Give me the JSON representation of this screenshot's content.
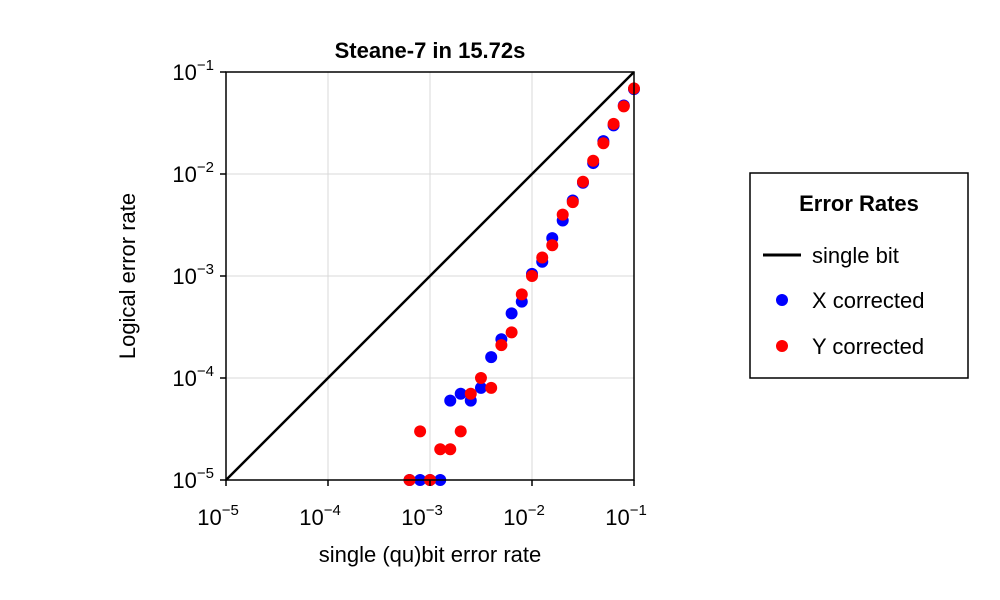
{
  "chart_data": {
    "type": "scatter",
    "title": "Steane-7 in 15.72s",
    "xlabel": "single (qu)bit error rate",
    "ylabel": "Logical error rate",
    "xscale": "log10",
    "yscale": "log10",
    "xlim": [
      1e-05,
      0.1
    ],
    "ylim": [
      1e-05,
      0.1
    ],
    "grid": true,
    "x_ticks": [
      {
        "base": "10",
        "exp": "−5",
        "value": 1e-05
      },
      {
        "base": "10",
        "exp": "−4",
        "value": 0.0001
      },
      {
        "base": "10",
        "exp": "−3",
        "value": 0.001
      },
      {
        "base": "10",
        "exp": "−2",
        "value": 0.01
      },
      {
        "base": "10",
        "exp": "−1",
        "value": 0.1
      }
    ],
    "y_ticks": [
      {
        "base": "10",
        "exp": "−5",
        "value": 1e-05
      },
      {
        "base": "10",
        "exp": "−4",
        "value": 0.0001
      },
      {
        "base": "10",
        "exp": "−3",
        "value": 0.001
      },
      {
        "base": "10",
        "exp": "−2",
        "value": 0.01
      },
      {
        "base": "10",
        "exp": "−1",
        "value": 0.1
      }
    ],
    "legend": {
      "title": "Error Rates",
      "placement": "right-outside",
      "entries": [
        {
          "label": "single bit",
          "kind": "line",
          "color": "#000000"
        },
        {
          "label": "X corrected",
          "kind": "marker",
          "color": "#0000ff"
        },
        {
          "label": "Y corrected",
          "kind": "marker",
          "color": "#ff0000"
        }
      ]
    },
    "series": [
      {
        "name": "single bit",
        "kind": "line",
        "color": "#000000",
        "x": [
          1e-05,
          0.1
        ],
        "y": [
          1e-05,
          0.1
        ]
      },
      {
        "name": "X corrected",
        "kind": "scatter",
        "color": "#0000ff",
        "x": [
          0.00063,
          0.0008,
          0.001,
          0.00126,
          0.00158,
          0.002,
          0.00251,
          0.00316,
          0.00398,
          0.00501,
          0.00631,
          0.00794,
          0.01,
          0.0126,
          0.0158,
          0.02,
          0.0251,
          0.0316,
          0.0398,
          0.0501,
          0.0631,
          0.0794,
          0.1
        ],
        "y": [
          1e-05,
          1e-05,
          1e-05,
          1e-05,
          6e-05,
          7e-05,
          6e-05,
          8e-05,
          0.00016,
          0.00024,
          0.00043,
          0.00056,
          0.00105,
          0.00138,
          0.00235,
          0.0035,
          0.0055,
          0.0082,
          0.0128,
          0.021,
          0.03,
          0.047,
          0.068
        ]
      },
      {
        "name": "Y corrected",
        "kind": "scatter",
        "color": "#ff0000",
        "x": [
          0.00063,
          0.0008,
          0.001,
          0.00126,
          0.00158,
          0.002,
          0.00251,
          0.00316,
          0.00398,
          0.00501,
          0.00631,
          0.00794,
          0.01,
          0.0126,
          0.0158,
          0.02,
          0.0251,
          0.0316,
          0.0398,
          0.0501,
          0.0631,
          0.0794,
          0.1
        ],
        "y": [
          1e-05,
          3e-05,
          1e-05,
          2e-05,
          2e-05,
          3e-05,
          7e-05,
          0.0001,
          8e-05,
          0.00021,
          0.00028,
          0.00066,
          0.001,
          0.00152,
          0.002,
          0.004,
          0.0053,
          0.0084,
          0.0135,
          0.02,
          0.031,
          0.046,
          0.069
        ]
      }
    ]
  }
}
